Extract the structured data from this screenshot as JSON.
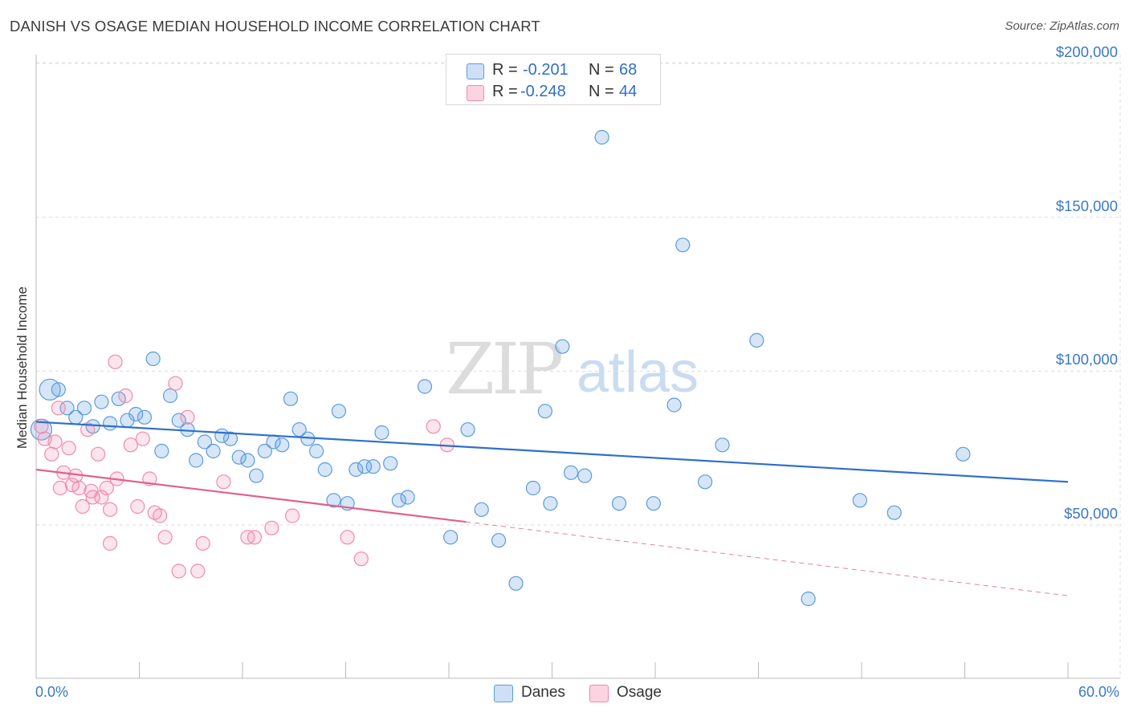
{
  "header": {
    "title": "DANISH VS OSAGE MEDIAN HOUSEHOLD INCOME CORRELATION CHART",
    "source": "Source: ZipAtlas.com"
  },
  "watermark": {
    "zip": "ZIP",
    "atlas": "atlas"
  },
  "legend": {
    "r_label": "R =",
    "n_label": "N =",
    "rows": [
      {
        "r_value": "-0.201",
        "n_value": "68",
        "color": "#5b9bde"
      },
      {
        "r_value": "-0.248",
        "n_value": "44",
        "color": "#f08aab"
      }
    ]
  },
  "bottom_legend": {
    "danes": "Danes",
    "osage": "Osage"
  },
  "chart_data": {
    "type": "scatter",
    "ylabel": "Median Household Income",
    "xlabel": "",
    "x_tick_labels": {
      "min": "0.0%",
      "max": "60.0%"
    },
    "y_tick_labels": [
      "$200,000",
      "$150,000",
      "$100,000",
      "$50,000"
    ],
    "xlim": [
      0,
      60
    ],
    "ylim": [
      0,
      205000
    ],
    "y_ticks": [
      50000,
      100000,
      150000,
      200000
    ],
    "grid": true,
    "colors": {
      "danes": "#5b9bde",
      "osage": "#f08aab",
      "danes_line": "#2f6fcc",
      "osage_line": "#e0608c"
    },
    "series": [
      {
        "name": "Danes",
        "points": [
          [
            0.3,
            81000
          ],
          [
            0.8,
            94000
          ],
          [
            1.3,
            94000
          ],
          [
            1.8,
            88000
          ],
          [
            2.3,
            85000
          ],
          [
            2.8,
            88000
          ],
          [
            3.3,
            82000
          ],
          [
            3.8,
            90000
          ],
          [
            4.3,
            83000
          ],
          [
            4.8,
            91000
          ],
          [
            5.3,
            84000
          ],
          [
            5.8,
            86000
          ],
          [
            6.3,
            85000
          ],
          [
            6.8,
            104000
          ],
          [
            7.3,
            74000
          ],
          [
            7.8,
            92000
          ],
          [
            8.3,
            84000
          ],
          [
            8.8,
            81000
          ],
          [
            9.3,
            71000
          ],
          [
            9.8,
            77000
          ],
          [
            10.3,
            74000
          ],
          [
            10.8,
            79000
          ],
          [
            11.3,
            78000
          ],
          [
            11.8,
            72000
          ],
          [
            12.3,
            71000
          ],
          [
            12.8,
            66000
          ],
          [
            13.3,
            74000
          ],
          [
            13.8,
            77000
          ],
          [
            14.3,
            76000
          ],
          [
            14.8,
            91000
          ],
          [
            15.3,
            81000
          ],
          [
            15.8,
            78000
          ],
          [
            16.3,
            74000
          ],
          [
            16.8,
            68000
          ],
          [
            17.3,
            58000
          ],
          [
            17.6,
            87000
          ],
          [
            18.1,
            57000
          ],
          [
            18.6,
            68000
          ],
          [
            19.1,
            69000
          ],
          [
            19.6,
            69000
          ],
          [
            20.1,
            80000
          ],
          [
            20.6,
            70000
          ],
          [
            21.1,
            58000
          ],
          [
            21.6,
            59000
          ],
          [
            22.6,
            95000
          ],
          [
            24.1,
            46000
          ],
          [
            25.1,
            81000
          ],
          [
            25.9,
            55000
          ],
          [
            26.9,
            45000
          ],
          [
            27.9,
            31000
          ],
          [
            28.9,
            62000
          ],
          [
            29.6,
            87000
          ],
          [
            29.9,
            57000
          ],
          [
            30.6,
            108000
          ],
          [
            31.1,
            67000
          ],
          [
            31.9,
            66000
          ],
          [
            32.9,
            176000
          ],
          [
            33.9,
            57000
          ],
          [
            35.9,
            57000
          ],
          [
            37.1,
            89000
          ],
          [
            37.6,
            141000
          ],
          [
            38.9,
            64000
          ],
          [
            39.9,
            76000
          ],
          [
            41.9,
            110000
          ],
          [
            44.9,
            26000
          ],
          [
            47.9,
            58000
          ],
          [
            49.9,
            54000
          ],
          [
            53.9,
            73000
          ]
        ],
        "trend": {
          "x0": 0,
          "y0": 83500,
          "x1": 60,
          "y1": 64000
        }
      },
      {
        "name": "Osage",
        "points": [
          [
            0.3,
            82000
          ],
          [
            0.5,
            78000
          ],
          [
            0.9,
            73000
          ],
          [
            1.1,
            77000
          ],
          [
            1.3,
            88000
          ],
          [
            1.4,
            62000
          ],
          [
            1.6,
            67000
          ],
          [
            1.9,
            75000
          ],
          [
            2.1,
            63000
          ],
          [
            2.3,
            66000
          ],
          [
            2.5,
            62000
          ],
          [
            2.7,
            56000
          ],
          [
            3.0,
            81000
          ],
          [
            3.2,
            61000
          ],
          [
            3.3,
            59000
          ],
          [
            3.6,
            73000
          ],
          [
            3.8,
            59000
          ],
          [
            4.1,
            62000
          ],
          [
            4.3,
            55000
          ],
          [
            4.3,
            44000
          ],
          [
            4.6,
            103000
          ],
          [
            4.7,
            65000
          ],
          [
            5.2,
            92000
          ],
          [
            5.5,
            76000
          ],
          [
            5.9,
            56000
          ],
          [
            6.2,
            78000
          ],
          [
            6.6,
            65000
          ],
          [
            6.9,
            54000
          ],
          [
            7.2,
            53000
          ],
          [
            7.5,
            46000
          ],
          [
            8.1,
            96000
          ],
          [
            8.3,
            35000
          ],
          [
            8.8,
            85000
          ],
          [
            9.4,
            35000
          ],
          [
            9.7,
            44000
          ],
          [
            10.9,
            64000
          ],
          [
            12.3,
            46000
          ],
          [
            12.7,
            46000
          ],
          [
            13.7,
            49000
          ],
          [
            14.9,
            53000
          ],
          [
            18.1,
            46000
          ],
          [
            18.9,
            39000
          ],
          [
            23.1,
            82000
          ],
          [
            23.9,
            76000
          ]
        ],
        "trend": {
          "x0": 0,
          "y0": 68000,
          "x1": 25,
          "y1": 51000,
          "dashed_to_x": 60,
          "dashed_to_y": 27000
        }
      }
    ]
  }
}
